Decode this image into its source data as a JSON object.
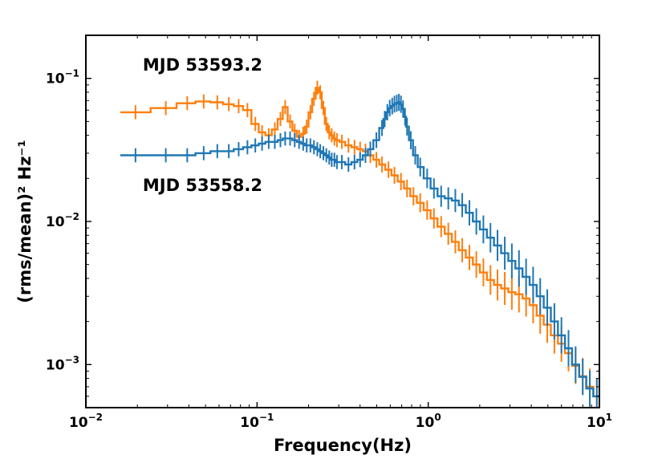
{
  "chart_data": {
    "type": "line",
    "step": true,
    "xscale": "log",
    "yscale": "log",
    "xlim": [
      0.01,
      10
    ],
    "ylim": [
      0.0005,
      0.2
    ],
    "xlabel": "Frequency(Hz)",
    "ylabel": "(rms/mean)² Hz⁻¹",
    "xticks": [
      {
        "value": 0.01,
        "base": "10",
        "exp": "−2"
      },
      {
        "value": 0.1,
        "base": "10",
        "exp": "−1"
      },
      {
        "value": 1,
        "base": "10",
        "exp": "0"
      },
      {
        "value": 10,
        "base": "10",
        "exp": "1"
      }
    ],
    "yticks": [
      {
        "value": 0.001,
        "base": "10",
        "exp": "−3"
      },
      {
        "value": 0.01,
        "base": "10",
        "exp": "−2"
      },
      {
        "value": 0.1,
        "base": "10",
        "exp": "−1"
      }
    ],
    "annotations": [
      {
        "text": "MJD 53593.2",
        "series": "MJD 53593.2"
      },
      {
        "text": "MJD 53558.2",
        "series": "MJD 53558.2"
      }
    ],
    "series": [
      {
        "name": "MJD 53593.2",
        "color": "#ff7f0e",
        "x": [
          0.0195,
          0.0293,
          0.0391,
          0.0488,
          0.0586,
          0.0684,
          0.0781,
          0.0879,
          0.0977,
          0.107,
          0.117,
          0.127,
          0.137,
          0.146,
          0.156,
          0.166,
          0.176,
          0.186,
          0.195,
          0.205,
          0.215,
          0.225,
          0.234,
          0.244,
          0.254,
          0.264,
          0.273,
          0.283,
          0.293,
          0.313,
          0.342,
          0.371,
          0.4,
          0.43,
          0.459,
          0.498,
          0.537,
          0.586,
          0.635,
          0.693,
          0.752,
          0.82,
          0.898,
          0.986,
          1.08,
          1.19,
          1.31,
          1.44,
          1.58,
          1.74,
          1.91,
          2.1,
          2.31,
          2.54,
          2.8,
          3.08,
          3.39,
          3.73,
          4.1,
          4.51,
          4.96,
          5.46,
          6.0,
          6.6,
          7.26,
          7.99,
          8.79,
          9.66
        ],
        "y": [
          0.058,
          0.062,
          0.067,
          0.069,
          0.068,
          0.066,
          0.064,
          0.06,
          0.048,
          0.042,
          0.04,
          0.044,
          0.052,
          0.063,
          0.05,
          0.043,
          0.039,
          0.041,
          0.046,
          0.058,
          0.072,
          0.086,
          0.08,
          0.062,
          0.048,
          0.042,
          0.04,
          0.038,
          0.037,
          0.036,
          0.034,
          0.033,
          0.032,
          0.031,
          0.029,
          0.027,
          0.025,
          0.023,
          0.021,
          0.019,
          0.017,
          0.015,
          0.0135,
          0.012,
          0.0105,
          0.0092,
          0.0082,
          0.0072,
          0.0063,
          0.0056,
          0.005,
          0.0044,
          0.0039,
          0.0036,
          0.0034,
          0.0032,
          0.0031,
          0.0029,
          0.0026,
          0.0022,
          0.0019,
          0.0016,
          0.0014,
          0.0012,
          0.00098,
          0.00083,
          0.0007,
          0.0006
        ]
      },
      {
        "name": "MJD 53558.2",
        "color": "#1f77b4",
        "x": [
          0.0195,
          0.0293,
          0.0391,
          0.0488,
          0.0586,
          0.0684,
          0.0781,
          0.0879,
          0.0977,
          0.107,
          0.117,
          0.127,
          0.137,
          0.146,
          0.156,
          0.166,
          0.176,
          0.186,
          0.195,
          0.205,
          0.215,
          0.225,
          0.234,
          0.244,
          0.254,
          0.264,
          0.273,
          0.283,
          0.293,
          0.313,
          0.342,
          0.371,
          0.4,
          0.43,
          0.459,
          0.498,
          0.537,
          0.557,
          0.577,
          0.596,
          0.616,
          0.635,
          0.655,
          0.674,
          0.693,
          0.713,
          0.732,
          0.752,
          0.791,
          0.84,
          0.898,
          0.986,
          1.08,
          1.19,
          1.31,
          1.44,
          1.58,
          1.74,
          1.91,
          2.1,
          2.31,
          2.54,
          2.8,
          3.08,
          3.39,
          3.73,
          4.1,
          4.51,
          4.96,
          5.46,
          6.0,
          6.6,
          7.26,
          7.99,
          8.79,
          9.66
        ],
        "y": [
          0.029,
          0.029,
          0.029,
          0.03,
          0.031,
          0.031,
          0.032,
          0.033,
          0.034,
          0.035,
          0.036,
          0.036,
          0.037,
          0.038,
          0.038,
          0.037,
          0.036,
          0.035,
          0.034,
          0.034,
          0.033,
          0.032,
          0.031,
          0.03,
          0.029,
          0.028,
          0.027,
          0.027,
          0.026,
          0.026,
          0.025,
          0.026,
          0.027,
          0.029,
          0.032,
          0.037,
          0.045,
          0.052,
          0.058,
          0.062,
          0.064,
          0.066,
          0.067,
          0.068,
          0.066,
          0.061,
          0.054,
          0.046,
          0.037,
          0.029,
          0.024,
          0.02,
          0.017,
          0.015,
          0.0145,
          0.014,
          0.013,
          0.0115,
          0.01,
          0.0088,
          0.0077,
          0.0068,
          0.006,
          0.0053,
          0.0047,
          0.0041,
          0.0036,
          0.003,
          0.0025,
          0.002,
          0.0016,
          0.0013,
          0.001,
          0.00082,
          0.00068,
          0.0006
        ]
      }
    ]
  }
}
